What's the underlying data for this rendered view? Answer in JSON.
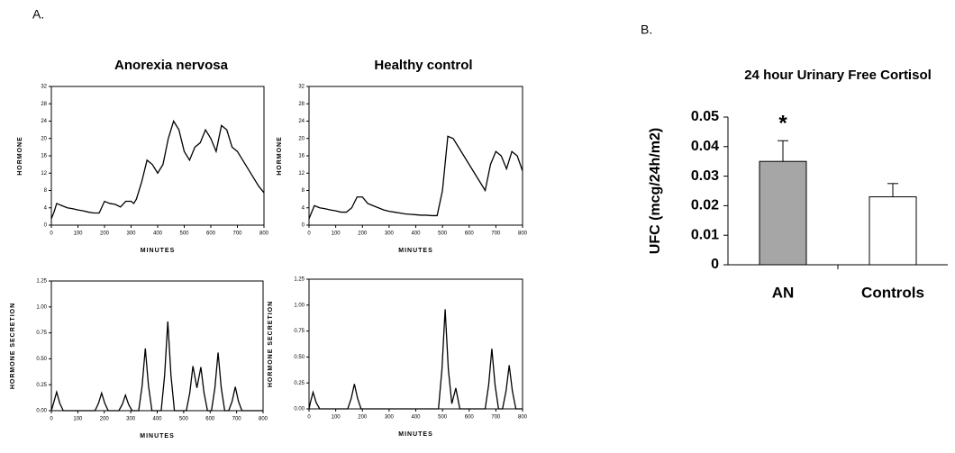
{
  "panel_labels": [
    "A.",
    "B."
  ],
  "chart_data": [
    {
      "type": "line",
      "title": "Anorexia nervosa",
      "xlabel": "MINUTES",
      "ylabel": "HORMONE",
      "color": "#000000",
      "x": [
        0,
        10,
        20,
        40,
        60,
        80,
        100,
        120,
        140,
        160,
        180,
        200,
        220,
        240,
        260,
        280,
        300,
        310,
        320,
        340,
        360,
        380,
        400,
        420,
        440,
        460,
        480,
        500,
        520,
        540,
        560,
        580,
        600,
        620,
        640,
        660,
        680,
        700,
        720,
        740,
        760,
        780,
        800
      ],
      "values": [
        1.5,
        3,
        5,
        4.5,
        4,
        3.8,
        3.5,
        3.3,
        3,
        2.8,
        2.8,
        5.5,
        5,
        4.8,
        4.2,
        5.5,
        5.5,
        5,
        6,
        10,
        15,
        14,
        12,
        14,
        20,
        24,
        22,
        17,
        15,
        18,
        19,
        22,
        20,
        17,
        23,
        22,
        18,
        17,
        15,
        13,
        11,
        9,
        7.5
      ],
      "xlim": [
        0,
        800
      ],
      "xticks": [
        0,
        100,
        200,
        300,
        400,
        500,
        600,
        700,
        800
      ],
      "ylim": [
        0,
        32
      ],
      "yticks": [
        0,
        4,
        8,
        12,
        16,
        20,
        24,
        28,
        32
      ]
    },
    {
      "type": "line",
      "title": "Healthy control",
      "xlabel": "MINUTES",
      "ylabel": "HORMONE",
      "color": "#000000",
      "x": [
        0,
        20,
        40,
        60,
        80,
        100,
        120,
        140,
        160,
        180,
        200,
        220,
        240,
        260,
        280,
        300,
        320,
        340,
        360,
        380,
        400,
        420,
        440,
        460,
        480,
        500,
        520,
        540,
        560,
        580,
        600,
        620,
        640,
        660,
        680,
        700,
        720,
        740,
        760,
        780,
        800
      ],
      "values": [
        1.5,
        4.5,
        4,
        3.8,
        3.5,
        3.3,
        3,
        3,
        4,
        6.5,
        6.5,
        5,
        4.5,
        4,
        3.5,
        3.2,
        3,
        2.8,
        2.6,
        2.5,
        2.4,
        2.3,
        2.3,
        2.2,
        2.2,
        8,
        20.5,
        20,
        18,
        16,
        14,
        12,
        10,
        8,
        14,
        17,
        16,
        13,
        17,
        16,
        12.5
      ],
      "xlim": [
        0,
        800
      ],
      "xticks": [
        0,
        100,
        200,
        300,
        400,
        500,
        600,
        700,
        800
      ],
      "ylim": [
        0,
        32
      ],
      "yticks": [
        0,
        4,
        8,
        12,
        16,
        20,
        24,
        28,
        32
      ]
    },
    {
      "type": "line",
      "xlabel": "MINUTES",
      "ylabel": "HORMONE SECRETION",
      "color": "#000000",
      "x": [
        0,
        8,
        20,
        32,
        45,
        165,
        178,
        190,
        202,
        215,
        255,
        268,
        280,
        292,
        305,
        330,
        343,
        355,
        367,
        380,
        415,
        428,
        440,
        452,
        465,
        510,
        523,
        535,
        550,
        565,
        577,
        590,
        605,
        618,
        630,
        642,
        655,
        670,
        683,
        695,
        707,
        720,
        800
      ],
      "values": [
        0,
        0.07,
        0.18,
        0.07,
        0,
        0,
        0.07,
        0.17,
        0.07,
        0,
        0,
        0.06,
        0.15,
        0.06,
        0,
        0,
        0.24,
        0.6,
        0.24,
        0,
        0,
        0.34,
        0.86,
        0.34,
        0,
        0,
        0.17,
        0.43,
        0.22,
        0.42,
        0.17,
        0,
        0,
        0.22,
        0.56,
        0.22,
        0,
        0,
        0.09,
        0.23,
        0.09,
        0,
        0
      ],
      "xlim": [
        0,
        800
      ],
      "xticks": [
        0,
        100,
        200,
        300,
        400,
        500,
        600,
        700,
        800
      ],
      "ylim": [
        0,
        1.25
      ],
      "yticks": [
        {
          "value": 0,
          "label": "0.00"
        },
        {
          "value": 0.25,
          "label": "0.25"
        },
        {
          "value": 0.5,
          "label": "0.50"
        },
        {
          "value": 0.75,
          "label": "0.75"
        },
        {
          "value": 1,
          "label": "1.00"
        },
        {
          "value": 1.25,
          "label": "1.25"
        }
      ]
    },
    {
      "type": "line",
      "xlabel": "MINUTES",
      "ylabel": "HORMONE SECRETION",
      "color": "#000000",
      "x": [
        0,
        5,
        15,
        27,
        40,
        145,
        158,
        170,
        182,
        195,
        485,
        498,
        510,
        522,
        535,
        550,
        565,
        660,
        673,
        685,
        697,
        710,
        725,
        738,
        750,
        762,
        775,
        800
      ],
      "values": [
        0,
        0.06,
        0.16,
        0.06,
        0,
        0,
        0.1,
        0.24,
        0.1,
        0,
        0,
        0.38,
        0.96,
        0.38,
        0.05,
        0.2,
        0,
        0,
        0.23,
        0.58,
        0.23,
        0,
        0,
        0.17,
        0.42,
        0.17,
        0,
        0
      ],
      "xlim": [
        0,
        800
      ],
      "xticks": [
        0,
        100,
        200,
        300,
        400,
        500,
        600,
        700,
        800
      ],
      "ylim": [
        0,
        1.25
      ],
      "yticks": [
        {
          "value": 0,
          "label": "0.00"
        },
        {
          "value": 0.25,
          "label": "0.25"
        },
        {
          "value": 0.5,
          "label": "0.50"
        },
        {
          "value": 0.75,
          "label": "0.75"
        },
        {
          "value": 1,
          "label": "1.00"
        },
        {
          "value": 1.25,
          "label": "1.25"
        }
      ]
    },
    {
      "type": "bar",
      "title": "24 hour Urinary Free Cortisol",
      "ylabel": "UFC (mcg/24h/m2)",
      "annotation": "*",
      "categories": [
        "AN",
        "Controls"
      ],
      "values": [
        0.035,
        0.023
      ],
      "errors": [
        0.007,
        0.0045
      ],
      "colors": [
        "#a6a6a6",
        "#ffffff"
      ],
      "ylim": [
        0,
        0.05
      ],
      "yticks": [
        0,
        0.01,
        0.02,
        0.03,
        0.04,
        0.05
      ]
    }
  ]
}
